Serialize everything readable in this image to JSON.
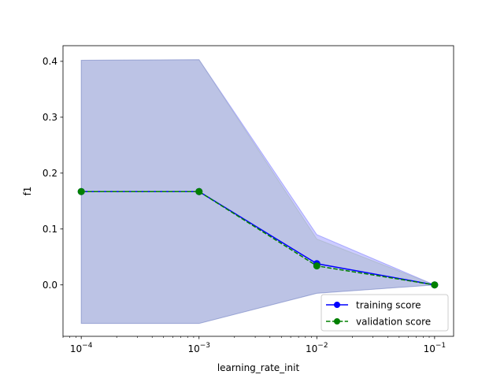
{
  "chart_data": {
    "type": "line",
    "title": "",
    "xlabel": "learning_rate_init",
    "ylabel": "f1",
    "xscale": "log",
    "x": [
      0.0001,
      0.001,
      0.01,
      0.1
    ],
    "xlim": [
      7e-05,
      0.145
    ],
    "ylim": [
      -0.092,
      0.428
    ],
    "grid": false,
    "legend_position": "lower-right",
    "x_ticks": [
      {
        "value": 0.0001,
        "base": "10",
        "exp": "−4"
      },
      {
        "value": 0.001,
        "base": "10",
        "exp": "−3"
      },
      {
        "value": 0.01,
        "base": "10",
        "exp": "−2"
      },
      {
        "value": 0.1,
        "base": "10",
        "exp": "−1"
      }
    ],
    "y_ticks": [
      {
        "value": 0.0,
        "label": "0.0"
      },
      {
        "value": 0.1,
        "label": "0.1"
      },
      {
        "value": 0.2,
        "label": "0.2"
      },
      {
        "value": 0.3,
        "label": "0.3"
      },
      {
        "value": 0.4,
        "label": "0.4"
      }
    ],
    "series": [
      {
        "name": "training score",
        "values": [
          0.167,
          0.167,
          0.038,
          0.0
        ],
        "band_upper": [
          0.402,
          0.403,
          0.09,
          0.0
        ],
        "band_lower": [
          -0.069,
          -0.069,
          -0.015,
          0.0
        ],
        "color": "#0000ff",
        "band_color": "#0000ff",
        "linestyle": "solid",
        "marker": "circle"
      },
      {
        "name": "validation score",
        "values": [
          0.167,
          0.167,
          0.034,
          0.0
        ],
        "band_upper": [
          0.402,
          0.403,
          0.082,
          0.0
        ],
        "band_lower": [
          -0.069,
          -0.069,
          -0.015,
          0.0
        ],
        "color": "#008000",
        "band_color": "#7f9f7f",
        "linestyle": "dashed",
        "marker": "circle"
      }
    ]
  }
}
